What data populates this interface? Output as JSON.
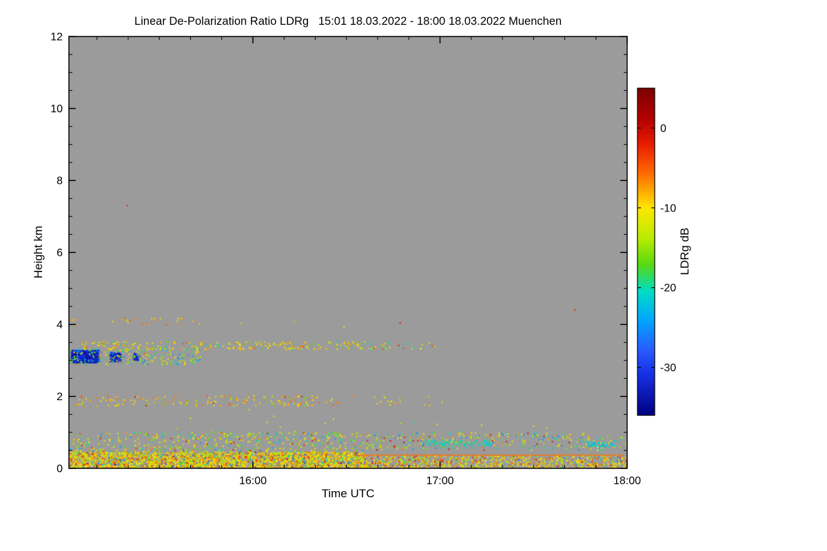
{
  "title": "Linear De-Polarization Ratio LDRg   15:01 18.03.2022 - 18:00 18.03.2022 Muenchen",
  "axes": {
    "x": {
      "label": "Time UTC",
      "start_minutes": 0,
      "end_minutes": 179,
      "major_ticks": [
        {
          "minutes": 59,
          "label": "16:00"
        },
        {
          "minutes": 119,
          "label": "17:00"
        },
        {
          "minutes": 179,
          "label": "18:00"
        }
      ],
      "minor_tick_minutes": [
        9,
        19,
        29,
        39,
        49,
        69,
        79,
        89,
        99,
        109,
        129,
        139,
        149,
        159,
        169
      ]
    },
    "y": {
      "label": "Height km",
      "range": [
        0,
        12
      ],
      "major_ticks": [
        0,
        2,
        4,
        6,
        8,
        10,
        12
      ],
      "minor_step": 0.5
    }
  },
  "colorbar": {
    "label": "LDRg dB",
    "range": [
      5,
      -36
    ],
    "ticks": [
      0,
      -10,
      -20,
      -30
    ],
    "stops": [
      [
        0.0,
        "#7e0000"
      ],
      [
        0.09,
        "#b10000"
      ],
      [
        0.17,
        "#e81c00"
      ],
      [
        0.26,
        "#ff6a00"
      ],
      [
        0.366,
        "#ffe600"
      ],
      [
        0.46,
        "#b8ec00"
      ],
      [
        0.54,
        "#58d814"
      ],
      [
        0.62,
        "#00ddc4"
      ],
      [
        0.71,
        "#00a6ff"
      ],
      [
        0.8,
        "#2a5cff"
      ],
      [
        0.87,
        "#1733e8"
      ],
      [
        1.0,
        "#000080"
      ]
    ]
  },
  "plot": {
    "no_data_color": "#9b9b9b",
    "frame_color": "#000000",
    "background": "#ffffff"
  },
  "chart_data": {
    "type": "heatmap",
    "title": "Linear De-Polarization Ratio LDRg",
    "period": "15:01 18.03.2022 - 18:00 18.03.2022",
    "site": "Muenchen",
    "xlabel": "Time UTC",
    "ylabel": "Height km",
    "value_label": "LDRg dB",
    "x_range_minutes": [
      0,
      179
    ],
    "y_range_km": [
      0,
      12
    ],
    "value_range_db": [
      5,
      -36
    ],
    "features": [
      {
        "name": "surface-layer-dense",
        "t": [
          0,
          95
        ],
        "h": [
          0.0,
          0.45
        ],
        "count": 3000,
        "size": 2,
        "seed": 11,
        "values": [
          [
            -10,
            30
          ],
          [
            -8,
            14
          ],
          [
            -12,
            16
          ],
          [
            -5,
            12
          ],
          [
            -2,
            6
          ],
          [
            -15,
            10
          ],
          [
            -19,
            7
          ],
          [
            -25,
            3
          ],
          [
            -31,
            2
          ]
        ]
      },
      {
        "name": "surface-layer-late",
        "t": [
          95,
          179
        ],
        "h": [
          0.0,
          0.35
        ],
        "count": 800,
        "size": 2,
        "seed": 12,
        "values": [
          [
            -10,
            30
          ],
          [
            -8,
            14
          ],
          [
            -12,
            16
          ],
          [
            -5,
            12
          ],
          [
            -2,
            7
          ],
          [
            -15,
            11
          ],
          [
            -19,
            7
          ],
          [
            -27,
            3
          ]
        ]
      },
      {
        "name": "boundary-layer",
        "t": [
          0,
          95
        ],
        "h": [
          0.45,
          1.0
        ],
        "count": 520,
        "size": 2,
        "seed": 13,
        "values": [
          [
            -12,
            22
          ],
          [
            -10,
            20
          ],
          [
            -16,
            18
          ],
          [
            -20,
            16
          ],
          [
            -7,
            10
          ],
          [
            -24,
            8
          ],
          [
            -2,
            6
          ]
        ]
      },
      {
        "name": "boundary-layer-late",
        "t": [
          95,
          165
        ],
        "h": [
          0.5,
          1.0
        ],
        "count": 260,
        "size": 2,
        "seed": 14,
        "values": [
          [
            -12,
            20
          ],
          [
            -10,
            18
          ],
          [
            -16,
            16
          ],
          [
            -20,
            18
          ],
          [
            -7,
            8
          ],
          [
            -25,
            12
          ],
          [
            -1,
            8
          ]
        ]
      },
      {
        "name": "boundary-layer-tail",
        "t": [
          165,
          179
        ],
        "h": [
          0.5,
          0.9
        ],
        "count": 40,
        "size": 2,
        "seed": 15,
        "values": [
          [
            -15,
            30
          ],
          [
            -20,
            40
          ],
          [
            -10,
            30
          ]
        ]
      },
      {
        "name": "cyan-dashes-1",
        "t": [
          113,
          135
        ],
        "h": [
          0.62,
          0.78
        ],
        "count": 90,
        "size": 2,
        "seed": 16,
        "values": [
          [
            -21,
            80
          ],
          [
            -18,
            20
          ]
        ]
      },
      {
        "name": "cyan-dashes-2",
        "t": [
          166,
          175
        ],
        "h": [
          0.6,
          0.75
        ],
        "count": 55,
        "size": 2,
        "seed": 17,
        "values": [
          [
            -21,
            85
          ],
          [
            -24,
            15
          ]
        ]
      },
      {
        "name": "layer-2km",
        "t": [
          2,
          80
        ],
        "h": [
          1.72,
          2.02
        ],
        "count": 170,
        "size": 2,
        "seed": 18,
        "values": [
          [
            -9,
            40
          ],
          [
            -6,
            25
          ],
          [
            -12,
            20
          ],
          [
            -16,
            10
          ],
          [
            -2,
            5
          ]
        ]
      },
      {
        "name": "layer-2km-sparse",
        "t": [
          80,
          120
        ],
        "h": [
          1.75,
          2.0
        ],
        "count": 25,
        "size": 2,
        "seed": 19,
        "values": [
          [
            -9,
            50
          ],
          [
            -12,
            30
          ],
          [
            -6,
            20
          ]
        ]
      },
      {
        "name": "cloud-blue-blob-1",
        "t": [
          0.5,
          9.5
        ],
        "h": [
          2.93,
          3.28
        ],
        "count": 650,
        "size": 2,
        "seed": 20,
        "values": [
          [
            -34,
            55
          ],
          [
            -32,
            25
          ],
          [
            -29,
            12
          ],
          [
            -25,
            8
          ]
        ]
      },
      {
        "name": "cloud-blue-blob-2",
        "t": [
          13,
          16.5
        ],
        "h": [
          2.96,
          3.22
        ],
        "count": 160,
        "size": 2,
        "seed": 21,
        "values": [
          [
            -34,
            55
          ],
          [
            -32,
            25
          ],
          [
            -29,
            12
          ],
          [
            -25,
            8
          ]
        ]
      },
      {
        "name": "cloud-blue-blob-3",
        "t": [
          20.5,
          22.5
        ],
        "h": [
          3.0,
          3.2
        ],
        "count": 45,
        "size": 2,
        "seed": 22,
        "values": [
          [
            -33,
            60
          ],
          [
            -30,
            40
          ]
        ]
      },
      {
        "name": "cloud-edge-3km",
        "t": [
          0,
          42
        ],
        "h": [
          2.88,
          3.32
        ],
        "count": 210,
        "size": 2,
        "seed": 23,
        "values": [
          [
            -14,
            25
          ],
          [
            -10,
            22
          ],
          [
            -18,
            20
          ],
          [
            -22,
            18
          ],
          [
            -26,
            10
          ],
          [
            -6,
            5
          ]
        ]
      },
      {
        "name": "layer-3p4km",
        "t": [
          3,
          95
        ],
        "h": [
          3.3,
          3.52
        ],
        "count": 230,
        "size": 2,
        "seed": 24,
        "values": [
          [
            -10,
            40
          ],
          [
            -8,
            20
          ],
          [
            -13,
            16
          ],
          [
            -17,
            10
          ],
          [
            -21,
            8
          ],
          [
            -5,
            6
          ]
        ]
      },
      {
        "name": "layer-3p4km-late",
        "t": [
          95,
          118
        ],
        "h": [
          3.3,
          3.5
        ],
        "count": 30,
        "size": 2,
        "seed": 25,
        "values": [
          [
            -10,
            40
          ],
          [
            -20,
            25
          ],
          [
            -3,
            15
          ],
          [
            -14,
            20
          ]
        ]
      },
      {
        "name": "sparse-4km",
        "t": [
          0,
          42
        ],
        "h": [
          3.95,
          4.2
        ],
        "count": 26,
        "size": 2,
        "seed": 26,
        "values": [
          [
            -9,
            45
          ],
          [
            -6,
            30
          ],
          [
            -12,
            25
          ]
        ]
      },
      {
        "name": "sporadic-mid",
        "t": [
          0,
          179
        ],
        "h": [
          1.0,
          1.7
        ],
        "count": 18,
        "size": 2,
        "seed": 27,
        "values": [
          [
            -10,
            50
          ],
          [
            -15,
            25
          ],
          [
            -20,
            25
          ]
        ]
      },
      {
        "name": "plume-line",
        "type": "line",
        "t": [
          92,
          178
        ],
        "h": 0.38,
        "value": -6
      }
    ],
    "points": [
      {
        "t": 18.5,
        "h": 7.32,
        "value": -2
      },
      {
        "t": 106,
        "h": 4.06,
        "value": -2
      },
      {
        "t": 162,
        "h": 4.42,
        "value": -2
      },
      {
        "t": 55,
        "h": 4.05,
        "value": -9
      },
      {
        "t": 72,
        "h": 4.1,
        "value": -9
      },
      {
        "t": 88,
        "h": 3.95,
        "value": -11
      }
    ]
  }
}
